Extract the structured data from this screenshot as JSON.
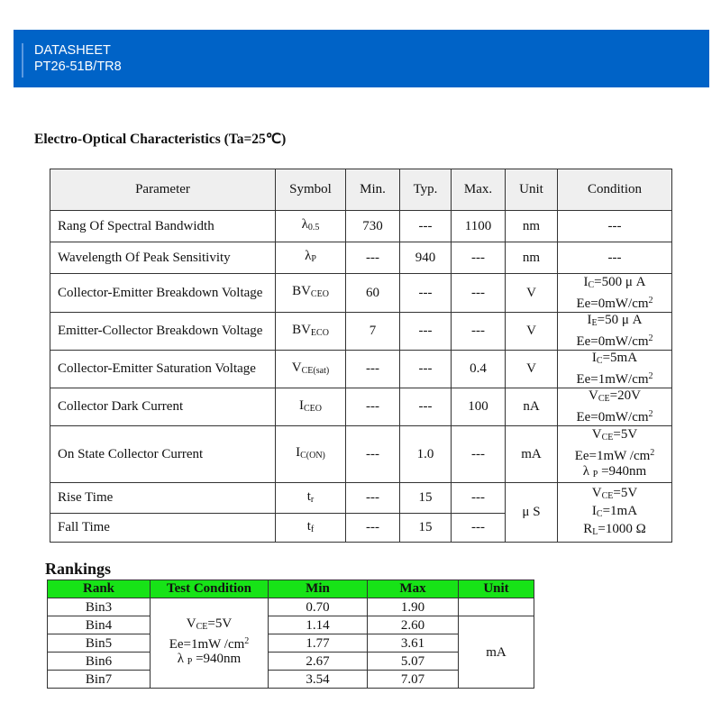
{
  "header": {
    "line1": "DATASHEET",
    "line2": "PT26-51B/TR8"
  },
  "section_title": "Electro-Optical Characteristics (Ta=25℃)",
  "eo_table": {
    "headers": [
      "Parameter",
      "Symbol",
      "Min.",
      "Typ.",
      "Max.",
      "Unit",
      "Condition"
    ],
    "rows": [
      {
        "param": "Rang Of Spectral Bandwidth",
        "sym": "λ",
        "sub": "0.5",
        "min": "730",
        "typ": "---",
        "max": "1100",
        "unit": "nm",
        "cond": [
          {
            "pre": "---",
            "sub": "",
            "post": "",
            "sup": ""
          }
        ]
      },
      {
        "param": "Wavelength Of Peak Sensitivity",
        "sym": "λ",
        "sub": "P",
        "min": "---",
        "typ": "940",
        "max": "---",
        "unit": "nm",
        "cond": [
          {
            "pre": "---",
            "sub": "",
            "post": "",
            "sup": ""
          }
        ]
      },
      {
        "param": "Collector-Emitter Breakdown Voltage",
        "sym": "BV",
        "sub": "CEO",
        "min": "60",
        "typ": "---",
        "max": "---",
        "unit": "V",
        "cond": [
          {
            "pre": "I",
            "sub": "C",
            "post": "=500 μ A",
            "sup": ""
          },
          {
            "pre": "Ee=0mW/cm",
            "sub": "",
            "post": "",
            "sup": "2"
          }
        ]
      },
      {
        "param": "Emitter-Collector Breakdown Voltage",
        "sym": "BV",
        "sub": "ECO",
        "min": "7",
        "typ": "---",
        "max": "---",
        "unit": "V",
        "cond": [
          {
            "pre": "I",
            "sub": "E",
            "post": "=50 μ A",
            "sup": ""
          },
          {
            "pre": "Ee=0mW/cm",
            "sub": "",
            "post": "",
            "sup": "2"
          }
        ]
      },
      {
        "param": "Collector-Emitter Saturation Voltage",
        "sym": "V",
        "sub": "CE(sat)",
        "min": "---",
        "typ": "---",
        "max": "0.4",
        "unit": "V",
        "cond": [
          {
            "pre": "I",
            "sub": "C",
            "post": "=5mA",
            "sup": ""
          },
          {
            "pre": "Ee=1mW/cm",
            "sub": "",
            "post": "",
            "sup": "2"
          }
        ]
      },
      {
        "param": "Collector Dark Current",
        "sym": "I",
        "sub": "CEO",
        "min": "---",
        "typ": "---",
        "max": "100",
        "unit": "nA",
        "cond": [
          {
            "pre": "V",
            "sub": "CE",
            "post": "=20V",
            "sup": ""
          },
          {
            "pre": "Ee=0mW/cm",
            "sub": "",
            "post": "",
            "sup": "2"
          }
        ]
      },
      {
        "param": "On State Collector Current",
        "sym": "I",
        "sub": "C(ON)",
        "min": "---",
        "typ": "1.0",
        "max": "---",
        "unit": "mA",
        "cond": [
          {
            "pre": "V",
            "sub": "CE",
            "post": "=5V",
            "sup": ""
          },
          {
            "pre": "Ee=1mW /cm",
            "sub": "",
            "post": "",
            "sup": "2"
          },
          {
            "pre": "λ ",
            "sub": "P",
            "post": " =940nm",
            "sup": ""
          }
        ]
      },
      {
        "param": "Rise Time",
        "sym": "t",
        "sub": "r",
        "min": "---",
        "typ": "15",
        "max": "---",
        "unit": "μ S",
        "cond": [
          {
            "pre": "V",
            "sub": "CE",
            "post": "=5V",
            "sup": ""
          },
          {
            "pre": "I",
            "sub": "C",
            "post": "=1mA",
            "sup": ""
          },
          {
            "pre": "R",
            "sub": "L",
            "post": "=1000 Ω",
            "sup": ""
          }
        ]
      },
      {
        "param": "Fall Time",
        "sym": "t",
        "sub": "f",
        "min": "---",
        "typ": "15",
        "max": "---"
      }
    ]
  },
  "rankings": {
    "title": "Rankings",
    "headers": [
      "Rank",
      "Test Condition",
      "Min",
      "Max",
      "Unit"
    ],
    "condition": [
      {
        "pre": "V",
        "sub": "CE",
        "post": "=5V",
        "sup": ""
      },
      {
        "pre": "Ee=1mW /cm",
        "sub": "",
        "post": "",
        "sup": "2"
      },
      {
        "pre": "λ ",
        "sub": "P",
        "post": " =940nm",
        "sup": ""
      }
    ],
    "unit": "mA",
    "rows": [
      {
        "rank": "Bin3",
        "min": "0.70",
        "max": "1.90"
      },
      {
        "rank": "Bin4",
        "min": "1.14",
        "max": "2.60"
      },
      {
        "rank": "Bin5",
        "min": "1.77",
        "max": "3.61"
      },
      {
        "rank": "Bin6",
        "min": "2.67",
        "max": "5.07"
      },
      {
        "rank": "Bin7",
        "min": "3.54",
        "max": "7.07"
      }
    ],
    "header_color": "#17e317"
  },
  "colors": {
    "banner": "#0063c7"
  }
}
